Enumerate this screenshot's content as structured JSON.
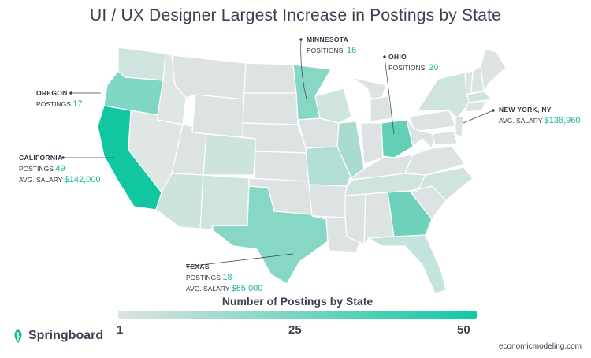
{
  "title": "UI / UX Designer Largest Increase in Postings by State",
  "colors": {
    "low": "#dde3e2",
    "high": "#0fc9a5",
    "accent_text": "#17b897",
    "state_stroke": "#ffffff"
  },
  "map_data": {
    "type": "choropleth",
    "region": "United States",
    "metric": "Number of Postings by State",
    "labeled_states": [
      {
        "state": "Oregon",
        "postings": 17
      },
      {
        "state": "California",
        "postings": 49,
        "avg_salary": "$142,000"
      },
      {
        "state": "Minnesota",
        "positions": 16
      },
      {
        "state": "Ohio",
        "positions": 20
      },
      {
        "state": "New York, NY",
        "avg_salary": "$138,960"
      },
      {
        "state": "Texas",
        "postings": 18,
        "avg_salary": "$65,000"
      }
    ]
  },
  "labels": {
    "oregon": {
      "name": "OREGON",
      "line1_label": "POSTINGS",
      "line1_value": "17"
    },
    "california": {
      "name": "CALIFORNIA",
      "line1_label": "POSTINGS",
      "line1_value": "49",
      "line2_label": "AVG. SALARY",
      "line2_value": "$142,000"
    },
    "minnesota": {
      "name": "MINNESOTA",
      "line1_label": "POSITIONS:",
      "line1_value": "16"
    },
    "ohio": {
      "name": "OHIO",
      "line1_label": "POSITIONS:",
      "line1_value": "20"
    },
    "newyork": {
      "name": "NEW YORK, NY",
      "line1_label": "AVG. SALARY",
      "line1_value": "$138,960"
    },
    "texas": {
      "name": "TEXAS",
      "line1_label": "POSTINGS",
      "line1_value": "18",
      "line2_label": "AVG. SALARY",
      "line2_value": "$65,000"
    }
  },
  "legend": {
    "title": "Number of Postings by State",
    "min_label": "1",
    "mid_label": "25",
    "max_label": "50"
  },
  "logo_text": "Springboard",
  "source": "economicmodeling.com"
}
